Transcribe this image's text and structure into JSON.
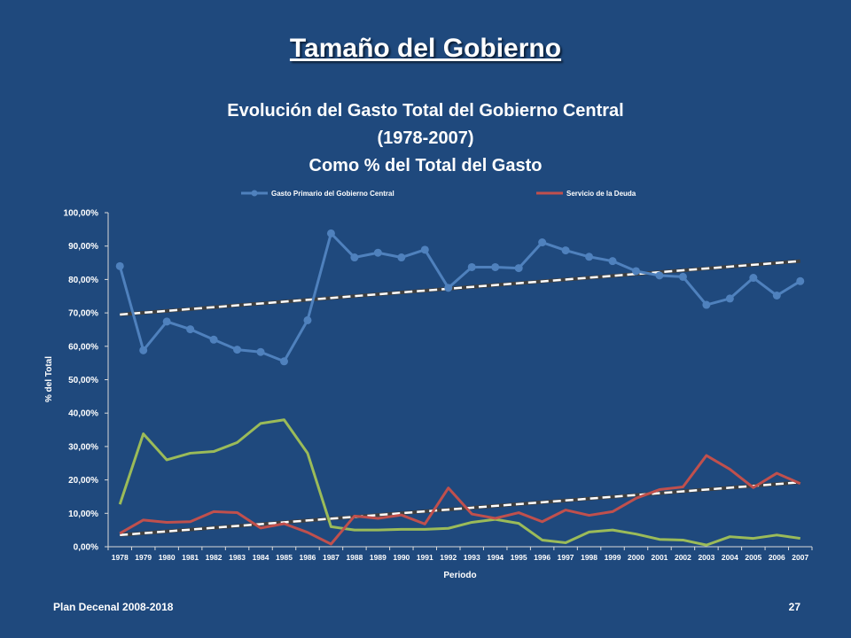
{
  "slide": {
    "title": "Tamaño del Gobierno",
    "footer_left": "Plan Decenal 2008-2018",
    "page_number": "27"
  },
  "chart_data": {
    "type": "line",
    "title_lines": [
      "Evolución del Gasto Total del Gobierno Central",
      "(1978-2007)",
      "Como % del Total del Gasto"
    ],
    "xlabel": "Periodo",
    "ylabel": "% del Total",
    "ylim": [
      0,
      100
    ],
    "yticks": [
      "0,00%",
      "10,00%",
      "20,00%",
      "30,00%",
      "40,00%",
      "50,00%",
      "60,00%",
      "70,00%",
      "80,00%",
      "90,00%",
      "100,00%"
    ],
    "legend_position": "top",
    "grid": false,
    "categories": [
      "1978",
      "1979",
      "1980",
      "1981",
      "1982",
      "1983",
      "1984",
      "1985",
      "1986",
      "1987",
      "1988",
      "1989",
      "1990",
      "1991",
      "1992",
      "1993",
      "1994",
      "1995",
      "1996",
      "1997",
      "1998",
      "1999",
      "2000",
      "2001",
      "2002",
      "2003",
      "2004",
      "2005",
      "2006",
      "2007"
    ],
    "series": [
      {
        "name": "Gasto Primario del Gobierno Central",
        "color": "#4f81bd",
        "markers": true,
        "values": [
          84.0,
          58.8,
          67.4,
          65.1,
          62.0,
          59.0,
          58.3,
          55.5,
          67.8,
          93.8,
          86.6,
          88.0,
          86.6,
          88.9,
          77.5,
          83.7,
          83.7,
          83.4,
          91.1,
          88.7,
          86.8,
          85.5,
          82.5,
          81.2,
          80.8,
          72.4,
          74.3,
          80.5,
          75.2,
          79.5
        ],
        "trendline": {
          "start": 69.5,
          "end": 85.5,
          "color": "#ffffff"
        }
      },
      {
        "name": "Servicio de la Deuda",
        "color": "#c0504d",
        "markers": false,
        "values": [
          4.0,
          8.0,
          7.3,
          7.5,
          10.5,
          10.2,
          5.6,
          6.9,
          4.3,
          0.8,
          9.2,
          8.5,
          9.5,
          6.8,
          17.6,
          9.8,
          8.5,
          10.2,
          7.5,
          11.0,
          9.4,
          10.5,
          14.5,
          17.1,
          17.9,
          27.3,
          23.2,
          17.7,
          22.0,
          18.9
        ],
        "trendline": {
          "start": 3.5,
          "end": 19.3,
          "color": "#ffffff"
        }
      },
      {
        "color": "#9bbb59",
        "markers": false,
        "values": [
          12.7,
          33.8,
          26.0,
          28.0,
          28.5,
          31.2,
          36.9,
          38.0,
          28.0,
          6.0,
          5.0,
          5.0,
          5.2,
          5.2,
          5.5,
          7.3,
          8.2,
          7.0,
          2.0,
          1.2,
          4.4,
          5.0,
          3.8,
          2.2,
          2.0,
          0.5,
          3.0,
          2.5,
          3.5,
          2.5
        ],
        "trendline": null
      }
    ]
  }
}
